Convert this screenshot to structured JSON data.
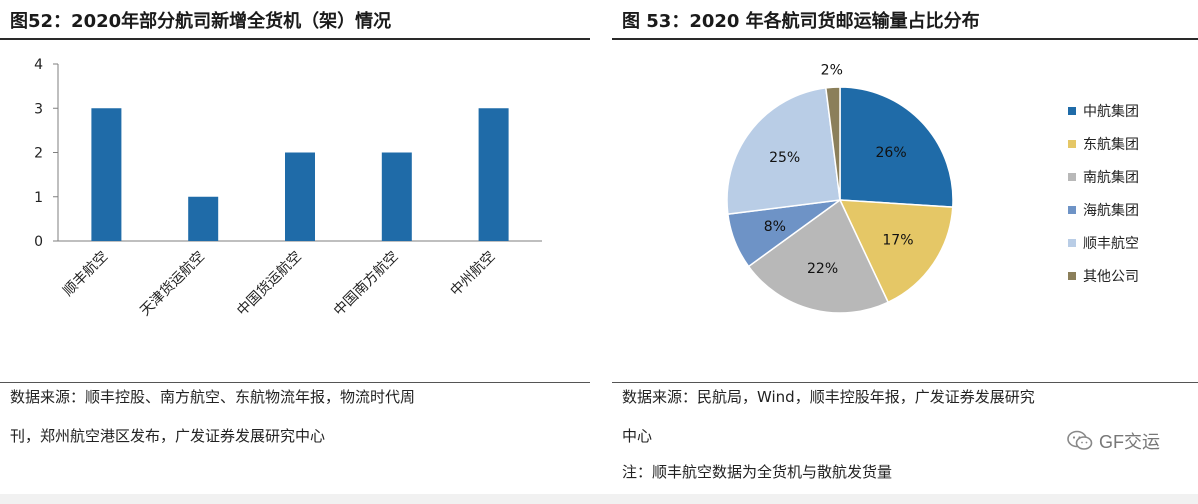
{
  "left": {
    "title": "图52：2020年部分航司新增全货机（架）情况",
    "source_line1": "数据来源：顺丰控股、南方航空、东航物流年报，物流时代周",
    "source_line2": "刊，郑州航空港区发布，广发证券发展研究中心"
  },
  "right": {
    "title": "图 53：2020 年各航司货邮运输量占比分布",
    "source_line1": "数据来源：民航局，Wind，顺丰控股年报，广发证券发展研究",
    "source_line2": "中心",
    "note": "注：顺丰航空数据为全货机与散航发货量"
  },
  "watermark": {
    "text": "GF交运",
    "icon": "wechat-icon"
  },
  "chart_data": [
    {
      "type": "bar",
      "categories": [
        "顺丰航空",
        "天津货运航空",
        "中国货运航空",
        "中国南方航空",
        "中州航空"
      ],
      "values": [
        3,
        1,
        2,
        2,
        3
      ],
      "title": "图52：2020年部分航司新增全货机（架）情况",
      "xlabel": "",
      "ylabel": "",
      "ylim": [
        0,
        4
      ],
      "yticks": [
        "0",
        "1",
        "2",
        "3",
        "4"
      ],
      "grid": false,
      "bar_color": "#1f6ba8"
    },
    {
      "type": "pie",
      "title": "图 53：2020 年各航司货邮运输量占比分布",
      "labels": [
        "中航集团",
        "东航集团",
        "南航集团",
        "海航集团",
        "顺丰航空",
        "其他公司"
      ],
      "values": [
        26,
        17,
        22,
        8,
        25,
        2
      ],
      "value_labels": [
        "26%",
        "17%",
        "22%",
        "8%",
        "25%",
        "2%"
      ],
      "colors": [
        "#1f6ba8",
        "#e5c766",
        "#b8b8b8",
        "#6e93c6",
        "#b9cde6",
        "#8b7f5a"
      ],
      "legend_position": "right"
    }
  ]
}
